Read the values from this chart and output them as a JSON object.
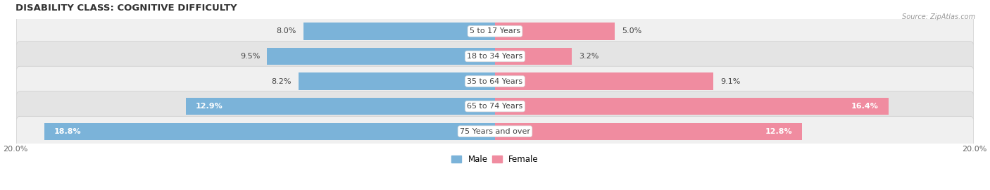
{
  "title": "DISABILITY CLASS: COGNITIVE DIFFICULTY",
  "source": "Source: ZipAtlas.com",
  "categories": [
    "5 to 17 Years",
    "18 to 34 Years",
    "35 to 64 Years",
    "65 to 74 Years",
    "75 Years and over"
  ],
  "male_values": [
    8.0,
    9.5,
    8.2,
    12.9,
    18.8
  ],
  "female_values": [
    5.0,
    3.2,
    9.1,
    16.4,
    12.8
  ],
  "male_color": "#7bb3d9",
  "female_color": "#f08ca0",
  "row_colors": [
    "#f0f0f0",
    "#e4e4e4"
  ],
  "xlim": 20.0,
  "legend_male": "Male",
  "legend_female": "Female",
  "title_fontsize": 9.5,
  "label_fontsize": 8,
  "category_fontsize": 8,
  "white_label_threshold": 10.0
}
